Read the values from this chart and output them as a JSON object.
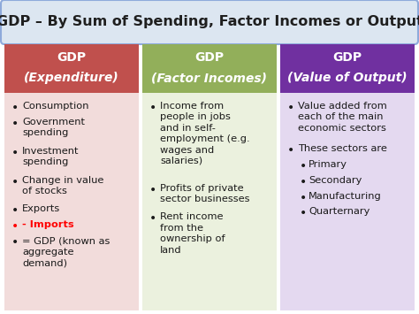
{
  "title": "GDP – By Sum of Spending, Factor Incomes or Output",
  "bg_color": "#ffffff",
  "title_bg": "#dce6f1",
  "title_border": "#8eaadb",
  "title_text_color": "#1f1f1f",
  "columns": [
    {
      "header_line1": "GDP",
      "header_line2": "(Expenditure)",
      "header_bg": "#c0504d",
      "body_bg": "#f2dcdb",
      "items": [
        {
          "text": "Consumption",
          "color": "#1a1a1a",
          "bullet_color": "#1a1a1a",
          "indent": 0
        },
        {
          "text": "Government\nspending",
          "color": "#1a1a1a",
          "bullet_color": "#1a1a1a",
          "indent": 0
        },
        {
          "text": "Investment\nspending",
          "color": "#1a1a1a",
          "bullet_color": "#1a1a1a",
          "indent": 0
        },
        {
          "text": "Change in value\nof stocks",
          "color": "#1a1a1a",
          "bullet_color": "#1a1a1a",
          "indent": 0
        },
        {
          "text": "Exports",
          "color": "#1a1a1a",
          "bullet_color": "#1a1a1a",
          "indent": 0
        },
        {
          "text": "- Imports",
          "color": "#ff0000",
          "bullet_color": "#ff0000",
          "indent": 0,
          "bold": true
        },
        {
          "text": "= GDP (known as\naggregate\ndemand)",
          "color": "#1a1a1a",
          "bullet_color": "#1a1a1a",
          "indent": 0
        }
      ]
    },
    {
      "header_line1": "GDP",
      "header_line2": "(Factor Incomes)",
      "header_bg": "#92af5a",
      "body_bg": "#ebf1de",
      "items": [
        {
          "text": "Income from\npeople in jobs\nand in self-\nemployment (e.g.\nwages and\nsalaries)",
          "color": "#1a1a1a",
          "bullet_color": "#1a1a1a",
          "indent": 0
        },
        {
          "text": "Profits of private\nsector businesses",
          "color": "#1a1a1a",
          "bullet_color": "#1a1a1a",
          "indent": 0
        },
        {
          "text": "Rent income\nfrom the\nownership of\nland",
          "color": "#1a1a1a",
          "bullet_color": "#1a1a1a",
          "indent": 0
        }
      ]
    },
    {
      "header_line1": "GDP",
      "header_line2": "(Value of Output)",
      "header_bg": "#7030a0",
      "body_bg": "#e4d9f0",
      "items": [
        {
          "text": "Value added from\neach of the main\neconomic sectors",
          "color": "#1a1a1a",
          "bullet_color": "#1a1a1a",
          "indent": 0
        },
        {
          "text": "These sectors are",
          "color": "#1a1a1a",
          "bullet_color": "#1a1a1a",
          "indent": 0
        },
        {
          "text": "Primary",
          "color": "#1a1a1a",
          "bullet_color": "#1a1a1a",
          "indent": 1
        },
        {
          "text": "Secondary",
          "color": "#1a1a1a",
          "bullet_color": "#1a1a1a",
          "indent": 1
        },
        {
          "text": "Manufacturing",
          "color": "#1a1a1a",
          "bullet_color": "#1a1a1a",
          "indent": 1
        },
        {
          "text": "Quarternary",
          "color": "#1a1a1a",
          "bullet_color": "#1a1a1a",
          "indent": 1
        }
      ]
    }
  ]
}
